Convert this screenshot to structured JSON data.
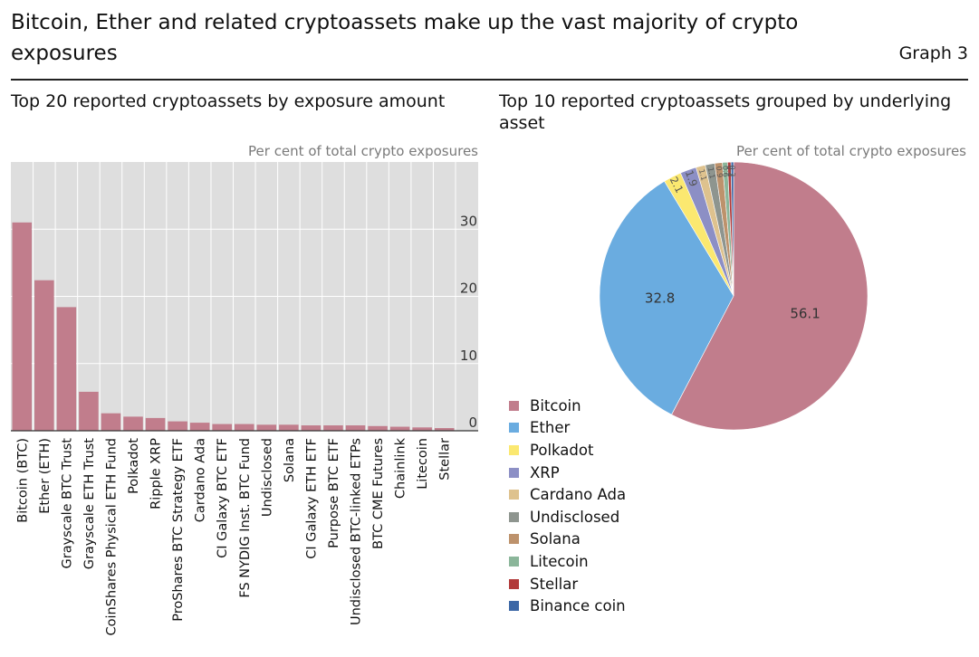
{
  "header": {
    "title": "Bitcoin, Ether and related cryptoassets make up the vast majority of crypto exposures",
    "graph_label": "Graph 3"
  },
  "chart_data": [
    {
      "type": "bar",
      "title": "Top 20 reported cryptoassets by exposure amount",
      "units": "Per cent of total crypto exposures",
      "categories": [
        "Bitcoin (BTC)",
        "Ether (ETH)",
        "Grayscale BTC Trust",
        "Grayscale ETH Trust",
        "CoinShares Physical ETH Fund",
        "Polkadot",
        "Ripple XRP",
        "ProShares BTC Strategy ETF",
        "Cardano Ada",
        "CI Galaxy BTC ETF",
        "FS NYDIG Inst. BTC Fund",
        "Undisclosed",
        "Solana",
        "CI Galaxy ETH ETF",
        "Purpose BTC ETF",
        "Undisclosed BTC-linked ETPs",
        "BTC CME Futures",
        "Chainlink",
        "Litecoin",
        "Stellar"
      ],
      "values": [
        31,
        22.4,
        18.4,
        5.8,
        2.6,
        2.1,
        1.9,
        1.4,
        1.2,
        1.0,
        1.0,
        0.9,
        0.9,
        0.8,
        0.8,
        0.8,
        0.7,
        0.6,
        0.5,
        0.4
      ],
      "yticks": [
        0,
        10,
        20,
        30
      ],
      "ylim": [
        0,
        40
      ],
      "grid": true,
      "color": "#c17d8c",
      "background": "#dedede"
    },
    {
      "type": "pie",
      "title": "Top 10 reported cryptoassets grouped by underlying asset",
      "units": "Per cent of total crypto exposures",
      "labels": [
        "Bitcoin",
        "Ether",
        "Polkadot",
        "XRP",
        "Cardano Ada",
        "Undisclosed",
        "Solana",
        "Litecoin",
        "Stellar",
        "Binance coin"
      ],
      "values": [
        56.1,
        32.8,
        2.1,
        1.9,
        1.1,
        1.1,
        0.9,
        0.6,
        0.4,
        0.3
      ],
      "data_labels": [
        "56.1",
        "32.8",
        "2.1",
        "1.9",
        "1.1",
        "1.1",
        "0.9",
        "0.6",
        "0.4",
        "0.3"
      ],
      "colors": [
        "#c17d8c",
        "#6aace0",
        "#fbe870",
        "#8c8fc5",
        "#dec28e",
        "#8e958f",
        "#bd926c",
        "#8bb69a",
        "#b23a3a",
        "#3c67a6"
      ],
      "legend_position": "bottom-left"
    }
  ]
}
